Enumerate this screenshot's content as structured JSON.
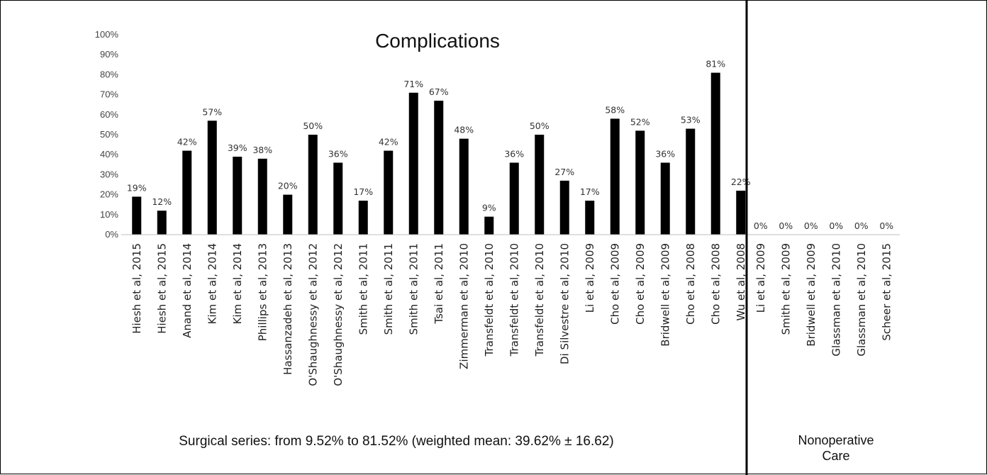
{
  "chart_data": {
    "type": "bar",
    "title": "Complications",
    "xlabel": "",
    "ylabel": "",
    "ylim": [
      0,
      100
    ],
    "yticks": [
      "0%",
      "10%",
      "20%",
      "30%",
      "40%",
      "50%",
      "60%",
      "70%",
      "80%",
      "90%",
      "100%"
    ],
    "grid": false,
    "bar_color": "#000000",
    "groups": [
      {
        "label": "",
        "note": "Surgical series: from 9.52% to 81.52% (weighted mean: 39.62% ± 16.62)",
        "categories": [
          "Hiesh et al, 2015",
          "Hiesh et al, 2015",
          "Anand et al, 2014",
          "Kim et al, 2014",
          "Kim et al, 2014",
          "Phillips et al, 2013",
          "Hassanzadeh et al, 2013",
          "O'Shaughnessy et al, 2012",
          "O'Shaughnessy et al, 2012",
          "Smith et al, 2011",
          "Smith et al, 2011",
          "Smith et al, 2011",
          "Tsai et al, 2011",
          "Zimmerman et al, 2010",
          "Transfeldt et al, 2010",
          "Transfeldt et al, 2010",
          "Transfeldt et al, 2010",
          "Di Silvestre et al, 2010",
          "Li et al, 2009",
          "Cho et al, 2009",
          "Cho et al, 2009",
          "Bridwell et al, 2009",
          "Cho et al, 2008",
          "Cho et al, 2008",
          "Wu et al, 2008"
        ],
        "values": [
          19,
          12,
          42,
          57,
          39,
          38,
          20,
          50,
          36,
          17,
          42,
          71,
          67,
          48,
          9,
          36,
          50,
          27,
          17,
          58,
          52,
          36,
          53,
          81,
          22
        ],
        "data_labels": [
          "19%",
          "12%",
          "42%",
          "57%",
          "39%",
          "38%",
          "20%",
          "50%",
          "36%",
          "17%",
          "42%",
          "71%",
          "67%",
          "48%",
          "9%",
          "36%",
          "50%",
          "27%",
          "17%",
          "58%",
          "52%",
          "36%",
          "53%",
          "81%",
          "22%"
        ]
      },
      {
        "label": "Nonoperative Care",
        "note": "",
        "categories": [
          "Li et al, 2009",
          "Smith et al, 2009",
          "Bridwell et al, 2009",
          "Glassman et al, 2010",
          "Glassman et al, 2010",
          "Scheer et al, 2015"
        ],
        "values": [
          0,
          0,
          0,
          0,
          0,
          0
        ],
        "data_labels": [
          "0%",
          "0%",
          "0%",
          "0%",
          "0%",
          "0%"
        ]
      }
    ]
  }
}
